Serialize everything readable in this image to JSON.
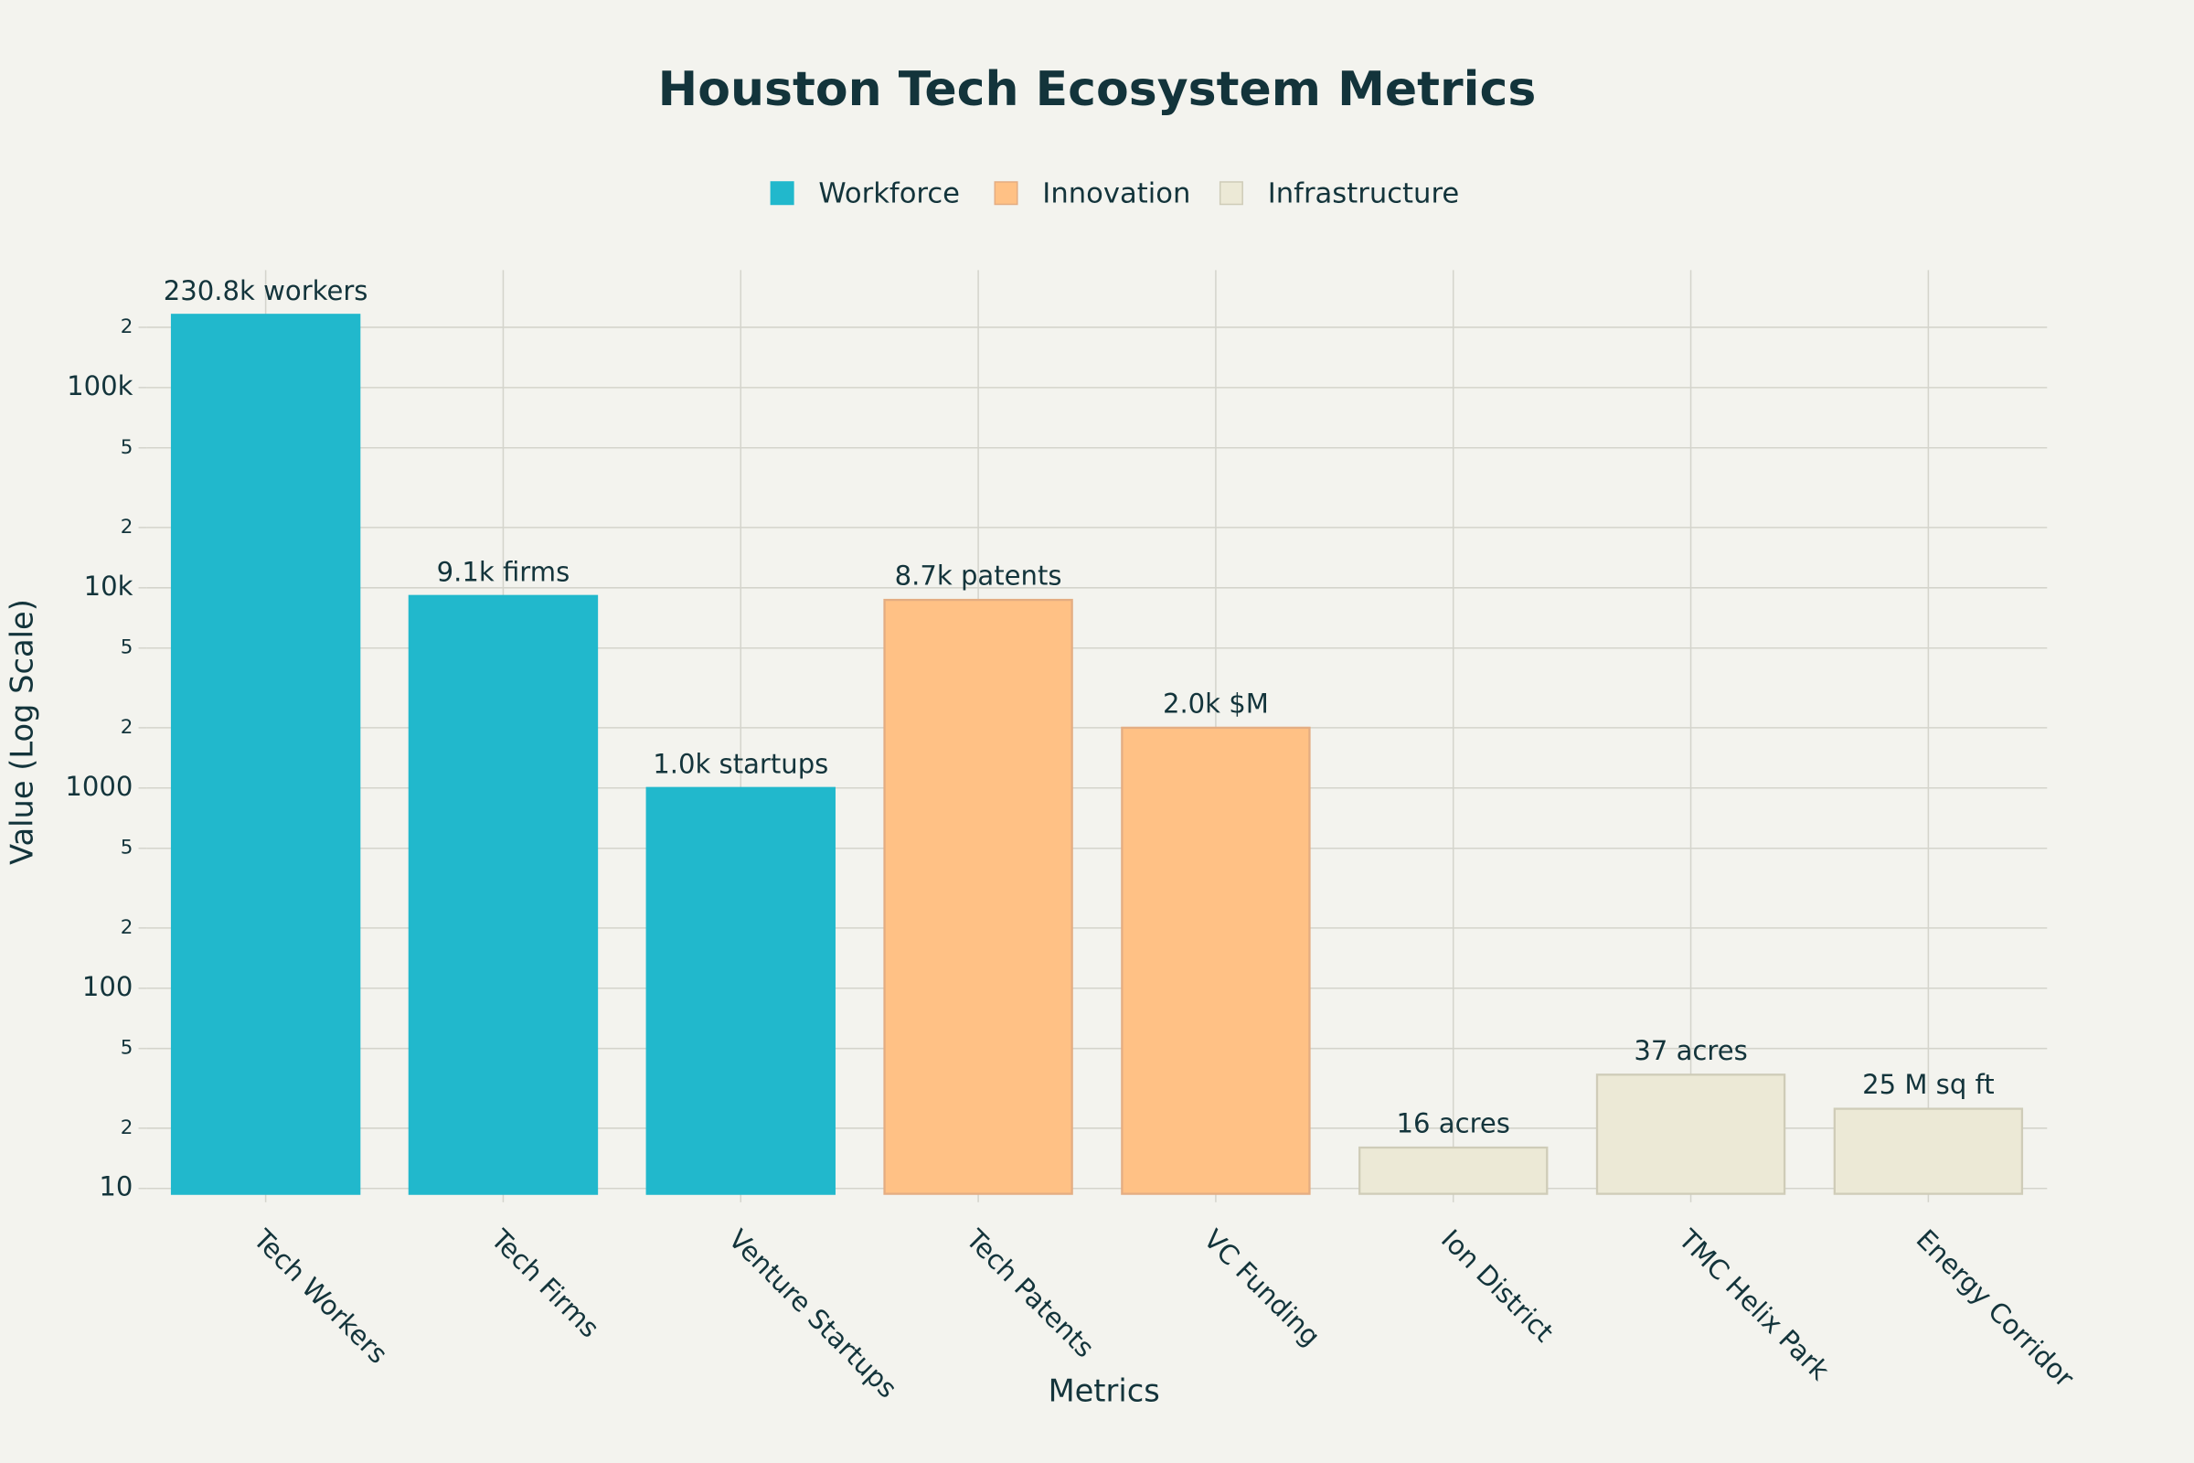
{
  "chart_data": {
    "type": "bar",
    "title": "Houston Tech Ecosystem Metrics",
    "x_title": "Metrics",
    "y_title": "Value (Log Scale)",
    "categories": [
      "Tech Workers",
      "Tech Firms",
      "Venture Startups",
      "Tech Patents",
      "VC Funding",
      "Ion District",
      "TMC Helix Park",
      "Energy Corridor"
    ],
    "series": [
      {
        "name": "Workforce",
        "color": "#21b8cc",
        "values": [
          230800,
          9100,
          1000,
          null,
          null,
          null,
          null,
          null
        ],
        "value_labels": [
          "230.8k workers",
          "9.1k firms",
          "1.0k startups",
          null,
          null,
          null,
          null,
          null
        ]
      },
      {
        "name": "Innovation",
        "color": "#ffc185",
        "values": [
          null,
          null,
          null,
          8700,
          2000,
          null,
          null,
          null
        ],
        "value_labels": [
          null,
          null,
          null,
          "8.7k patents",
          "2.0k $M",
          null,
          null,
          null
        ]
      },
      {
        "name": "Infrastructure",
        "color": "#ece9d6",
        "values": [
          null,
          null,
          null,
          null,
          null,
          16,
          37,
          25
        ],
        "value_labels": [
          null,
          null,
          null,
          null,
          null,
          "16 acres",
          "37 acres",
          "25 M sq ft"
        ]
      }
    ],
    "log_y": true,
    "grid": true,
    "legend": "top",
    "ylim": [
      9.4,
      386000
    ],
    "yticks": [
      10,
      {
        "value": 20,
        "label": "2"
      },
      {
        "value": 50,
        "label": "5"
      },
      100,
      {
        "value": 200,
        "label": "2"
      },
      {
        "value": 500,
        "label": "5"
      },
      1000,
      {
        "value": 2000,
        "label": "2"
      },
      {
        "value": 5000,
        "label": "5"
      },
      {
        "value": 10000,
        "label": "10k"
      },
      {
        "value": 20000,
        "label": "2"
      },
      {
        "value": 50000,
        "label": "5"
      },
      {
        "value": 100000,
        "label": "100k"
      },
      {
        "value": 200000,
        "label": "2"
      }
    ]
  }
}
